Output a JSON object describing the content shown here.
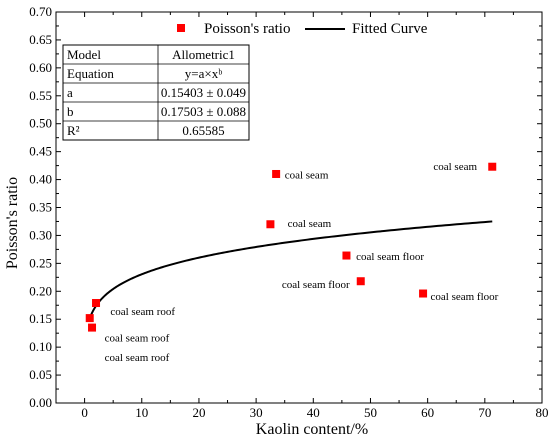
{
  "chart_data": {
    "type": "scatter",
    "xlabel": "Kaolin content/%",
    "ylabel": "Poisson's ratio",
    "xlim": [
      -5,
      80
    ],
    "ylim": [
      0,
      0.7
    ],
    "xticks": [
      0,
      10,
      20,
      30,
      40,
      50,
      60,
      70,
      80
    ],
    "yticks": [
      0.0,
      0.05,
      0.1,
      0.15,
      0.2,
      0.25,
      0.3,
      0.35,
      0.4,
      0.45,
      0.5,
      0.55,
      0.6,
      0.65,
      0.7
    ],
    "grid": false,
    "legend": {
      "placement": "top",
      "entries": [
        "Poisson's ratio",
        "Fitted Curve"
      ]
    },
    "series": [
      {
        "name": "Poisson's ratio",
        "marker_color": "#ff0000",
        "points": [
          {
            "x": 0.9,
            "y": 0.152
          },
          {
            "x": 1.3,
            "y": 0.135
          },
          {
            "x": 2.0,
            "y": 0.179
          },
          {
            "x": 32.5,
            "y": 0.32
          },
          {
            "x": 33.5,
            "y": 0.41
          },
          {
            "x": 45.8,
            "y": 0.264
          },
          {
            "x": 48.3,
            "y": 0.218
          },
          {
            "x": 59.2,
            "y": 0.196
          },
          {
            "x": 71.3,
            "y": 0.423
          }
        ]
      },
      {
        "name": "Fitted Curve",
        "line_color": "#000000",
        "model": "allometric",
        "a": 0.15403,
        "b": 0.17503,
        "x_range": [
          0.9,
          71.3
        ]
      }
    ],
    "annotations": [
      {
        "text": "coal seam roof",
        "x": 4.5,
        "y": 0.165
      },
      {
        "text": "coal seam roof",
        "x": 3.5,
        "y": 0.117
      },
      {
        "text": "coal seam roof",
        "x": 3.5,
        "y": 0.082
      },
      {
        "text": "coal seam",
        "x": 35.0,
        "y": 0.409
      },
      {
        "text": "coal seam",
        "x": 35.5,
        "y": 0.322
      },
      {
        "text": "coal seam floor",
        "x": 47.5,
        "y": 0.263
      },
      {
        "text": "coal seam floor",
        "x": 34.5,
        "y": 0.213
      },
      {
        "text": "coal seam floor",
        "x": 60.5,
        "y": 0.192
      },
      {
        "text": "coal seam",
        "x": 61.0,
        "y": 0.424
      }
    ],
    "fit_table": {
      "rows": [
        {
          "label": "Model",
          "value": "Allometric1"
        },
        {
          "label": "Equation",
          "value": "y=a×xᵇ"
        },
        {
          "label": "a",
          "value": "0.15403 ± 0.049"
        },
        {
          "label": "b",
          "value": "0.17503 ± 0.088"
        },
        {
          "label": "R²",
          "value": "0.65585"
        }
      ]
    }
  }
}
